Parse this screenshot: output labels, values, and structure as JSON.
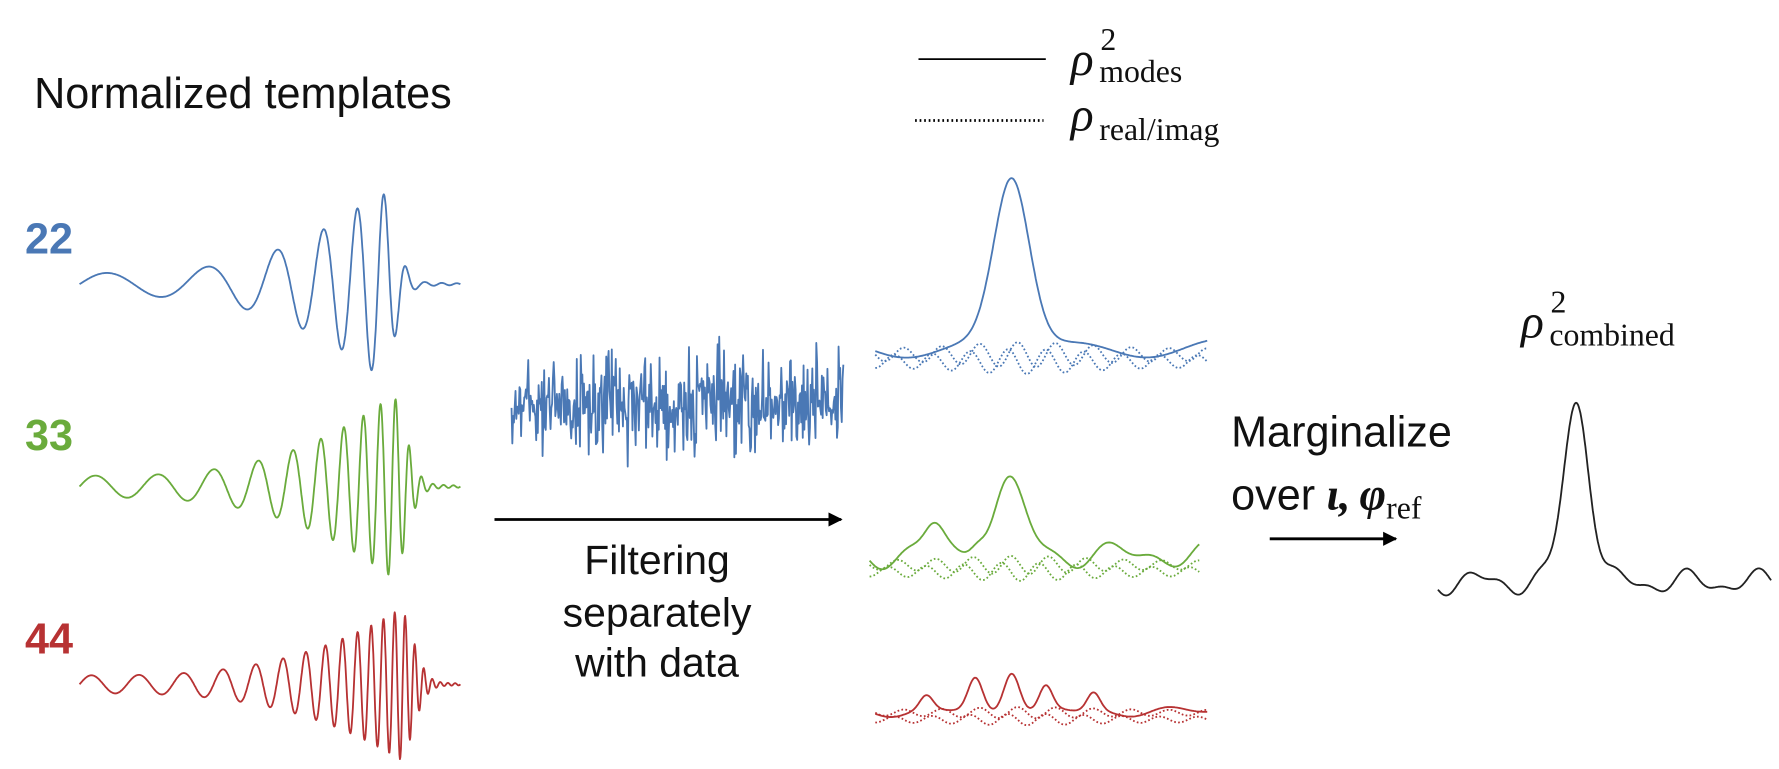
{
  "title": "Normalized templates",
  "modes": [
    "22",
    "33",
    "44"
  ],
  "legend": [
    {
      "symbol": "ρ",
      "sup": "2",
      "sub": "modes"
    },
    {
      "symbol": "ρ",
      "sub": "real/imag"
    }
  ],
  "filter_label": [
    "Filtering",
    "separately",
    "with data"
  ],
  "marginalize_label": {
    "line1": "Marginalize",
    "line2": [
      "over",
      "ι,",
      "φ"
    ],
    "sub": "ref"
  },
  "combined": {
    "symbol": "ρ",
    "sup": "2",
    "sub": "combined"
  }
}
